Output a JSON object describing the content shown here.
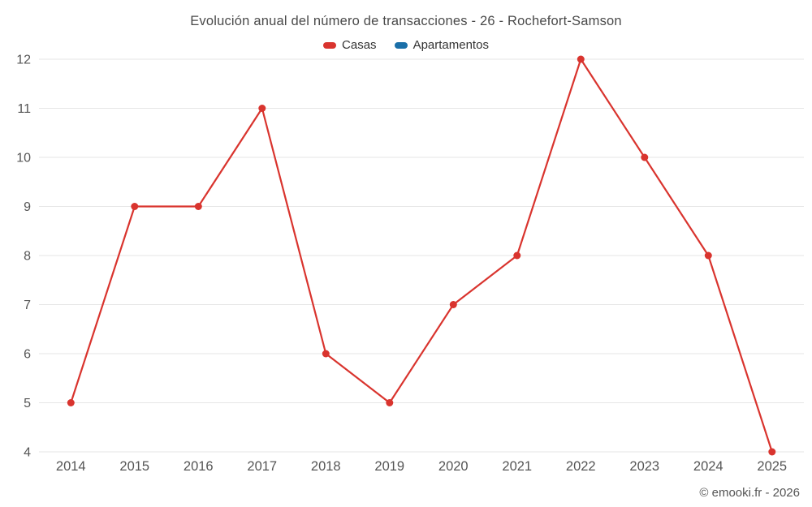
{
  "header": {
    "title": "Evolución anual del número de transacciones - 26 - Rochefort-Samson"
  },
  "legend": [
    {
      "label": "Casas",
      "color": "#d9342e"
    },
    {
      "label": "Apartamentos",
      "color": "#1a6fa8"
    }
  ],
  "footer": {
    "copyright": "© emooki.fr - 2026"
  },
  "theme": {
    "grid_color": "#e6e6e6",
    "axis_text_color": "#555555",
    "title_text_color": "#4a4a4a"
  },
  "chart_data": {
    "type": "line",
    "title": "Evolución anual del número de transacciones - 26 - Rochefort-Samson",
    "xlabel": "",
    "ylabel": "",
    "categories": [
      2014,
      2015,
      2016,
      2017,
      2018,
      2019,
      2020,
      2021,
      2022,
      2023,
      2024,
      2025
    ],
    "series": [
      {
        "name": "Casas",
        "color": "#d9342e",
        "values": [
          5,
          9,
          9,
          11,
          6,
          5,
          7,
          8,
          12,
          10,
          8,
          4
        ]
      },
      {
        "name": "Apartamentos",
        "color": "#1a6fa8",
        "values": []
      }
    ],
    "ylim": [
      4,
      12
    ],
    "yticks": [
      4,
      5,
      6,
      7,
      8,
      9,
      10,
      11,
      12
    ],
    "grid": "horizontal",
    "legend_position": "top"
  }
}
